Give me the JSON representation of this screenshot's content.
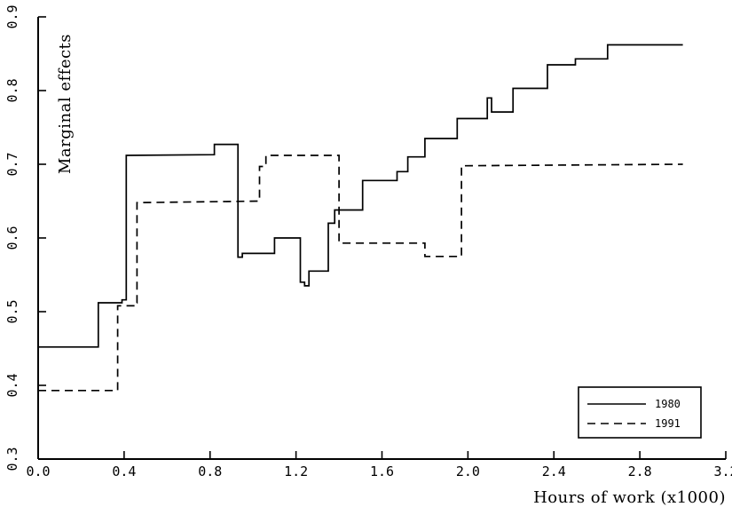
{
  "chart_data": {
    "type": "line",
    "step": true,
    "xlabel": "Hours of work (x1000)",
    "ylabel": "Marginal effects",
    "xlim": [
      0.0,
      3.2
    ],
    "ylim": [
      0.3,
      0.9
    ],
    "x_ticks": [
      0.0,
      0.4,
      0.8,
      1.2,
      1.6,
      2.0,
      2.4,
      2.8,
      3.2
    ],
    "x_tick_labels": [
      "0.0",
      "0.4",
      "0.8",
      "1.2",
      "1.6",
      "2.0",
      "2.4",
      "2.8",
      "3.2"
    ],
    "y_ticks": [
      0.3,
      0.4,
      0.5,
      0.6,
      0.7,
      0.8,
      0.9
    ],
    "y_tick_labels": [
      "0.3",
      "0.4",
      "0.5",
      "0.6",
      "0.7",
      "0.8",
      "0.9"
    ],
    "grid": false,
    "legend_placement": "bottom-right",
    "series": [
      {
        "name": "1980",
        "style": "solid",
        "color": "#000000",
        "points": [
          [
            0.0,
            0.452
          ],
          [
            0.28,
            0.452
          ],
          [
            0.28,
            0.512
          ],
          [
            0.39,
            0.512
          ],
          [
            0.39,
            0.516
          ],
          [
            0.41,
            0.516
          ],
          [
            0.41,
            0.712
          ],
          [
            0.82,
            0.713
          ],
          [
            0.82,
            0.727
          ],
          [
            0.93,
            0.727
          ],
          [
            0.93,
            0.574
          ],
          [
            0.95,
            0.574
          ],
          [
            0.95,
            0.579
          ],
          [
            1.1,
            0.579
          ],
          [
            1.1,
            0.6
          ],
          [
            1.22,
            0.6
          ],
          [
            1.22,
            0.54
          ],
          [
            1.24,
            0.54
          ],
          [
            1.24,
            0.535
          ],
          [
            1.26,
            0.535
          ],
          [
            1.26,
            0.555
          ],
          [
            1.35,
            0.555
          ],
          [
            1.35,
            0.62
          ],
          [
            1.38,
            0.62
          ],
          [
            1.38,
            0.638
          ],
          [
            1.51,
            0.638
          ],
          [
            1.51,
            0.678
          ],
          [
            1.67,
            0.678
          ],
          [
            1.67,
            0.69
          ],
          [
            1.72,
            0.69
          ],
          [
            1.72,
            0.71
          ],
          [
            1.8,
            0.71
          ],
          [
            1.8,
            0.735
          ],
          [
            1.95,
            0.735
          ],
          [
            1.95,
            0.762
          ],
          [
            2.09,
            0.762
          ],
          [
            2.09,
            0.79
          ],
          [
            2.11,
            0.79
          ],
          [
            2.11,
            0.771
          ],
          [
            2.21,
            0.771
          ],
          [
            2.21,
            0.803
          ],
          [
            2.37,
            0.803
          ],
          [
            2.37,
            0.835
          ],
          [
            2.5,
            0.835
          ],
          [
            2.5,
            0.843
          ],
          [
            2.65,
            0.843
          ],
          [
            2.65,
            0.862
          ],
          [
            3.0,
            0.862
          ]
        ]
      },
      {
        "name": "1991",
        "style": "dashed",
        "color": "#000000",
        "points": [
          [
            0.0,
            0.393
          ],
          [
            0.37,
            0.393
          ],
          [
            0.37,
            0.508
          ],
          [
            0.45,
            0.508
          ],
          [
            0.45,
            0.512
          ],
          [
            0.46,
            0.512
          ],
          [
            0.46,
            0.648
          ],
          [
            1.03,
            0.65
          ],
          [
            1.03,
            0.697
          ],
          [
            1.06,
            0.697
          ],
          [
            1.06,
            0.712
          ],
          [
            1.4,
            0.712
          ],
          [
            1.4,
            0.593
          ],
          [
            1.8,
            0.593
          ],
          [
            1.8,
            0.575
          ],
          [
            1.97,
            0.575
          ],
          [
            1.97,
            0.698
          ],
          [
            3.0,
            0.7
          ]
        ]
      }
    ]
  }
}
